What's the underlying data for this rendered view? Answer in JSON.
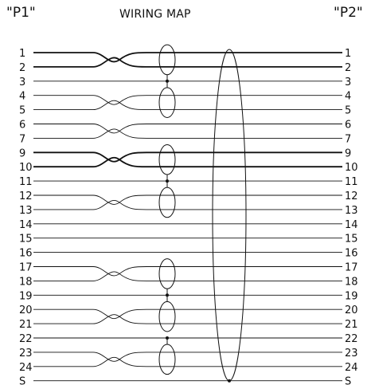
{
  "header": {
    "left_connector": "\"P1\"",
    "title": "WIRING MAP",
    "right_connector": "\"P2\""
  },
  "pins": [
    {
      "label": "1",
      "twist_with_next": true,
      "bold": true
    },
    {
      "label": "2",
      "bold": true
    },
    {
      "label": "3"
    },
    {
      "label": "4",
      "twist_with_next": true
    },
    {
      "label": "5"
    },
    {
      "label": "6",
      "twist_with_next": true
    },
    {
      "label": "7"
    },
    {
      "label": "9",
      "twist_with_next": true,
      "bold": true
    },
    {
      "label": "10",
      "bold": true
    },
    {
      "label": "11"
    },
    {
      "label": "12",
      "twist_with_next": true
    },
    {
      "label": "13"
    },
    {
      "label": "14"
    },
    {
      "label": "15"
    },
    {
      "label": "16"
    },
    {
      "label": "17",
      "twist_with_next": true
    },
    {
      "label": "18"
    },
    {
      "label": "19"
    },
    {
      "label": "20",
      "twist_with_next": true
    },
    {
      "label": "21"
    },
    {
      "label": "22"
    },
    {
      "label": "23",
      "twist_with_next": true
    },
    {
      "label": "24"
    },
    {
      "label": "S"
    }
  ],
  "shielded_pairs": [
    {
      "pins": [
        "1",
        "2"
      ],
      "drain": "3"
    },
    {
      "pins": [
        "4",
        "5"
      ],
      "drain": "3"
    },
    {
      "pins": [
        "9",
        "10"
      ],
      "drain": "11"
    },
    {
      "pins": [
        "12",
        "13"
      ],
      "drain": "11"
    },
    {
      "pins": [
        "17",
        "18"
      ],
      "drain": "19"
    },
    {
      "pins": [
        "20",
        "21"
      ],
      "drain": "19"
    },
    {
      "pins": [
        "23",
        "24"
      ],
      "drain": "22"
    }
  ],
  "overall_shield": {
    "connects_to": "S"
  },
  "colors": {
    "line": "#111111",
    "background": "#ffffff"
  }
}
